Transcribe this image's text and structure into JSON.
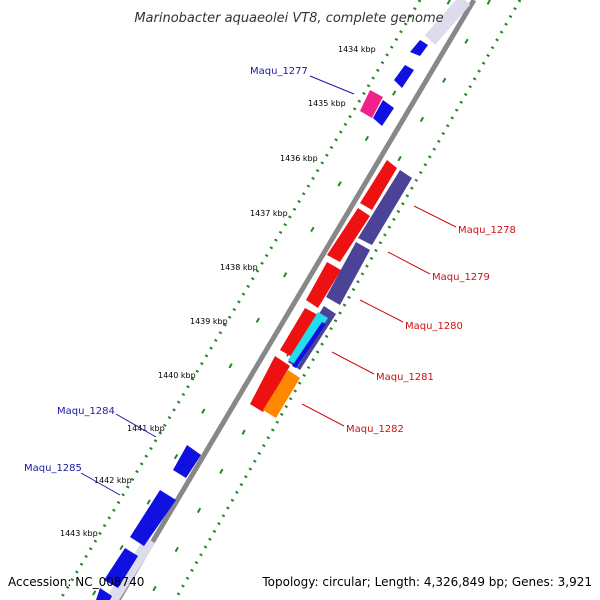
{
  "title": "Marinobacter aquaeolei VT8, complete genome",
  "footer": {
    "accession": "Accession: NC_008740",
    "topology": "Topology: circular; Length: 4,326,849 bp; Genes: 3,921"
  },
  "ticks": [
    "1434 kbp",
    "1435 kbp",
    "1436 kbp",
    "1437 kbp",
    "1438 kbp",
    "1439 kbp",
    "1440 kbp",
    "1441 kbp",
    "1442 kbp",
    "1443 kbp"
  ],
  "genes_forward": [
    {
      "name": "Maqu_1277"
    },
    {
      "name": "Maqu_1284"
    },
    {
      "name": "Maqu_1285"
    }
  ],
  "genes_reverse": [
    {
      "name": "Maqu_1278"
    },
    {
      "name": "Maqu_1279"
    },
    {
      "name": "Maqu_1280"
    },
    {
      "name": "Maqu_1281"
    },
    {
      "name": "Maqu_1282"
    }
  ],
  "colors": {
    "forward_gene": "#1010e0",
    "reverse_gene": "#ee1111",
    "operon": "#4b4496",
    "highlight_pink": "#ee2288",
    "cyan": "#22ddee",
    "orange": "#ff8800",
    "backbone": "#888888",
    "ring_dots": "#228822",
    "label_blue": "#1a1aa8",
    "label_red": "#cc1111"
  }
}
